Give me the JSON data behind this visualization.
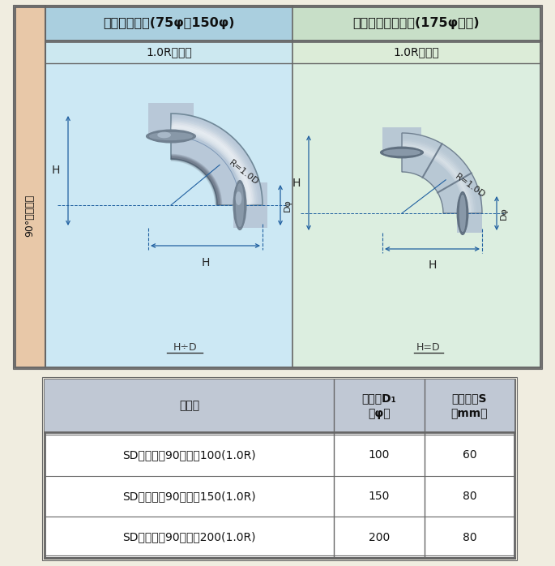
{
  "page_bg": "#f0ede0",
  "left_sidebar_bg": "#e8c8a8",
  "header_left_bg": "#aacfdf",
  "header_right_bg": "#c8dfc8",
  "subheader_left_bg": "#cce8f0",
  "subheader_right_bg": "#dcecd8",
  "left_diag_bg": "#cce8f4",
  "right_diag_bg": "#dceee0",
  "table_header_bg": "#c0c8d4",
  "table_border": "#666666",
  "title_left": "プレスベンド(75φ～150φ)",
  "title_right": "セクションベンド(175φ以上)",
  "subtitle": "1.0Rベンド",
  "row_label": "90°ベンド管",
  "annotation_left": "H÷D",
  "annotation_right": "H=D",
  "table_col1": "品　番",
  "table_col2": "呼び径D₁\n（φ）",
  "table_col3": "差込長さS\n（mm）",
  "table_rows": [
    [
      "SD差込継手90ベンド100(1.0R)",
      "100",
      "60"
    ],
    [
      "SD差込継手90ベンド150(1.0R)",
      "150",
      "80"
    ],
    [
      "SD差込継手90ベンド200(1.0R)",
      "200",
      "80"
    ]
  ],
  "dim_color": "#2060a0",
  "dim_lw": 0.9
}
